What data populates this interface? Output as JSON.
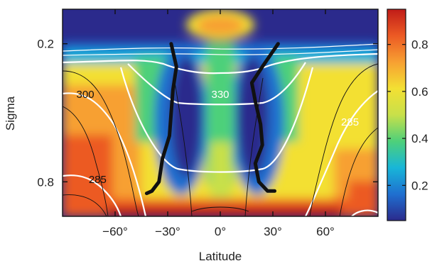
{
  "chart_data": {
    "type": "heatmap",
    "xlabel": "Latitude",
    "ylabel": "Sigma",
    "x_range": [
      -90,
      90
    ],
    "y_range": [
      0.05,
      0.95
    ],
    "y_direction": "top-down",
    "x_ticks": [
      {
        "value": -60,
        "label": "−60°"
      },
      {
        "value": -30,
        "label": "−30°"
      },
      {
        "value": 0,
        "label": "0°"
      },
      {
        "value": 30,
        "label": "30°"
      },
      {
        "value": 60,
        "label": "60°"
      }
    ],
    "y_ticks": [
      {
        "value": 0.2,
        "label": "0.2"
      },
      {
        "value": 0.8,
        "label": "0.8"
      }
    ],
    "colorbar": {
      "range": [
        0.05,
        0.95
      ],
      "ticks": [
        {
          "value": 0.2,
          "label": "0.2"
        },
        {
          "value": 0.4,
          "label": "0.4"
        },
        {
          "value": 0.6,
          "label": "0.6"
        },
        {
          "value": 0.8,
          "label": "0.8"
        }
      ],
      "colors": [
        "#2b2a8c",
        "#1f6fd0",
        "#18b6d8",
        "#4ed07a",
        "#c8e04a",
        "#f3e033",
        "#f7a032",
        "#ec5a24",
        "#c01c18"
      ]
    },
    "contour_labels": [
      {
        "value": "330",
        "lat": 0,
        "sigma": 0.42,
        "color": "#ffffff"
      },
      {
        "value": "300",
        "lat": -77,
        "sigma": 0.42,
        "color": "#111111"
      },
      {
        "value": "285",
        "lat": 74,
        "sigma": 0.54,
        "color": "#ffffff"
      },
      {
        "value": "285",
        "lat": -70,
        "sigma": 0.79,
        "color": "#111111"
      }
    ],
    "bold_lines": [
      {
        "name": "",
        "points": [
          [
            -28,
            0.2
          ],
          [
            -25,
            0.3
          ],
          [
            -27,
            0.4
          ],
          [
            -28,
            0.5
          ],
          [
            -29,
            0.6
          ],
          [
            -33,
            0.7
          ],
          [
            -35,
            0.8
          ],
          [
            -39,
            0.84
          ],
          [
            -42,
            0.85
          ]
        ]
      },
      {
        "name": "",
        "points": [
          [
            33,
            0.2
          ],
          [
            24,
            0.3
          ],
          [
            18,
            0.37
          ],
          [
            20,
            0.45
          ],
          [
            23,
            0.55
          ],
          [
            24,
            0.64
          ],
          [
            20,
            0.72
          ],
          [
            22,
            0.8
          ],
          [
            27,
            0.84
          ],
          [
            31,
            0.84
          ]
        ]
      }
    ]
  }
}
